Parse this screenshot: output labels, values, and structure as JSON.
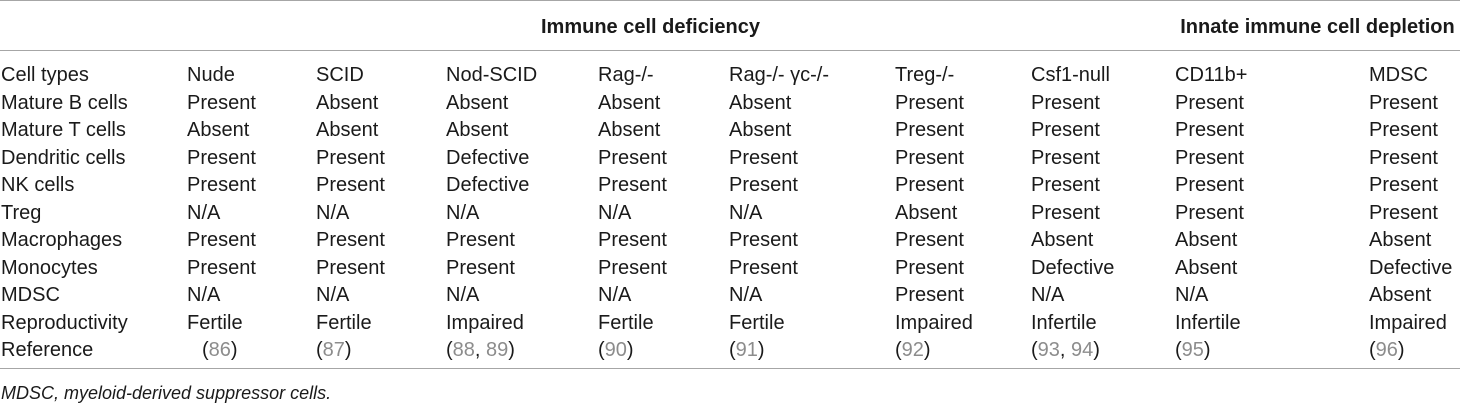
{
  "table": {
    "group_headers": [
      "Immune cell deficiency",
      "Innate immune cell depletion"
    ],
    "columns": [
      "Cell types",
      "Nude",
      "SCID",
      "Nod-SCID",
      "Rag-/-",
      "Rag-/- γc-/-",
      "Treg-/-",
      "Csf1-null",
      "CD11b+",
      "MDSC"
    ],
    "rows": [
      [
        "Mature B cells",
        "Present",
        "Absent",
        "Absent",
        "Absent",
        "Absent",
        "Present",
        "Present",
        "Present",
        "Present"
      ],
      [
        "Mature T cells",
        "Absent",
        "Absent",
        "Absent",
        "Absent",
        "Absent",
        "Present",
        "Present",
        "Present",
        "Present"
      ],
      [
        "Dendritic cells",
        "Present",
        "Present",
        "Defective",
        "Present",
        "Present",
        "Present",
        "Present",
        "Present",
        "Present"
      ],
      [
        "NK cells",
        "Present",
        "Present",
        "Defective",
        "Present",
        "Present",
        "Present",
        "Present",
        "Present",
        "Present"
      ],
      [
        "Treg",
        "N/A",
        "N/A",
        "N/A",
        "N/A",
        "N/A",
        "Absent",
        "Present",
        "Present",
        "Present"
      ],
      [
        "Macrophages",
        "Present",
        "Present",
        "Present",
        "Present",
        "Present",
        "Present",
        "Absent",
        "Absent",
        "Absent"
      ],
      [
        "Monocytes",
        "Present",
        "Present",
        "Present",
        "Present",
        "Present",
        "Present",
        "Defective",
        "Absent",
        "Defective"
      ],
      [
        "MDSC",
        "N/A",
        "N/A",
        "N/A",
        "N/A",
        "N/A",
        "Present",
        "N/A",
        "N/A",
        "Absent"
      ],
      [
        "Reproductivity",
        "Fertile",
        "Fertile",
        "Impaired",
        "Fertile",
        "Fertile",
        "Impaired",
        "Infertile",
        "Infertile",
        "Impaired"
      ],
      [
        "Reference",
        "(86)",
        "(87)",
        "(88, 89)",
        "(90)",
        "(91)",
        "(92)",
        "(93, 94)",
        "(95)",
        "(96)"
      ]
    ]
  },
  "footnote": "MDSC, myeloid-derived suppressor cells.",
  "colors": {
    "text": "#1a1a1a",
    "reference_link": "#8c8c8c",
    "rule": "#a6a6a6"
  }
}
